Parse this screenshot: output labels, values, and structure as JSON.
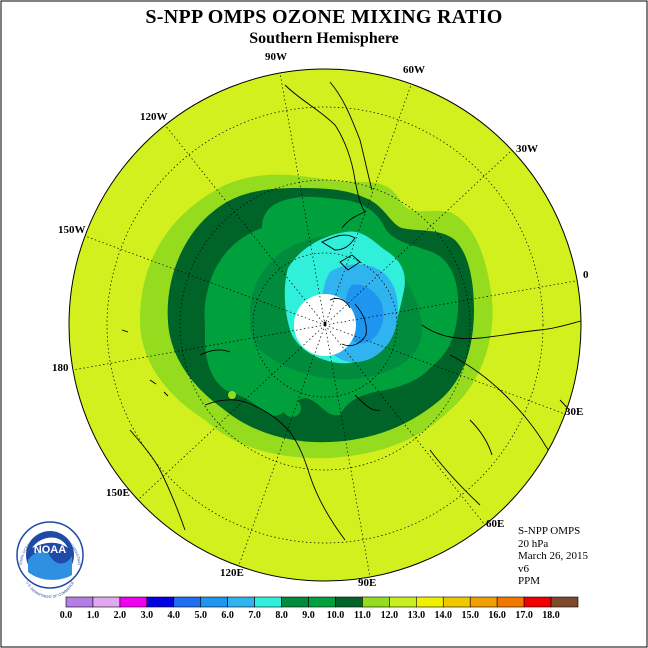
{
  "title": "S-NPP OMPS OZONE MIXING RATIO",
  "subtitle": "Southern Hemisphere",
  "longitude_labels": [
    "0",
    "30W",
    "60W",
    "90W",
    "120W",
    "150W",
    "180",
    "150E",
    "120E",
    "90E",
    "60E",
    "30E"
  ],
  "info": {
    "instrument": "S-NPP OMPS",
    "level": "20 hPa",
    "date": "March 26, 2015",
    "version": "v6",
    "units": "PPM"
  },
  "colorbar": {
    "ticks": [
      "0.0",
      "1.0",
      "2.0",
      "3.0",
      "4.0",
      "5.0",
      "6.0",
      "7.0",
      "8.0",
      "9.0",
      "10.0",
      "11.0",
      "12.0",
      "13.0",
      "14.0",
      "15.0",
      "16.0",
      "17.0",
      "18.0"
    ],
    "colors": [
      "#b57ee6",
      "#e0a8f0",
      "#f000f0",
      "#0000e0",
      "#1e6ef0",
      "#1e96f0",
      "#30b4f0",
      "#30f0dc",
      "#008c3c",
      "#00a03c",
      "#006428",
      "#96dc1e",
      "#c8f01e",
      "#f0f000",
      "#f0c800",
      "#f0a000",
      "#f07800",
      "#f00000",
      "#7e4a2c"
    ]
  },
  "map": {
    "background_color": "#d2f01e",
    "polar_gap_color": "#ffffff",
    "contour_levels": [
      "11.0",
      "10.0",
      "9.0",
      "8.0",
      "7.0",
      "6.0",
      "5.0"
    ]
  },
  "logo_text": {
    "name": "NOAA",
    "arc": "NATIONAL OCEANIC AND ATMOSPHERIC ADMINISTRATION",
    "bottom": "U.S. DEPARTMENT OF COMMERCE"
  }
}
